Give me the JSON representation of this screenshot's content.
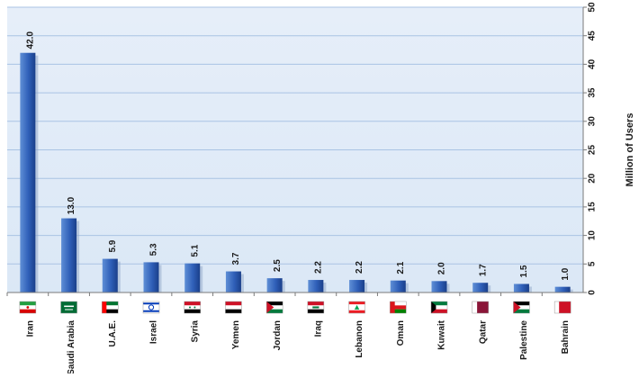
{
  "chart_data": {
    "type": "bar",
    "title": "",
    "xlabel": "",
    "ylabel": "Million of Users",
    "ylim": [
      0,
      50
    ],
    "y_ticks": [
      0,
      5,
      10,
      15,
      20,
      25,
      30,
      35,
      40,
      45,
      50
    ],
    "y_axis_position": "right",
    "grid": true,
    "legend": "none",
    "categories": [
      "Iran",
      "Saudi Arabia",
      "U.A.E.",
      "Israel",
      "Syria",
      "Yemen",
      "Jordan",
      "Iraq",
      "Lebanon",
      "Oman",
      "Kuwait",
      "Qatar",
      "Palestine",
      "Bahrain"
    ],
    "values": [
      42.0,
      13.0,
      5.9,
      5.3,
      5.1,
      3.7,
      2.5,
      2.2,
      2.2,
      2.1,
      2.0,
      1.7,
      1.5,
      1.0
    ],
    "data_labels": [
      "42.0",
      "13.0",
      "5.9",
      "5.3",
      "5.1",
      "3.7",
      "2.5",
      "2.2",
      "2.2",
      "2.1",
      "2.0",
      "1.7",
      "1.5",
      "1.0"
    ],
    "flag_icons": [
      "flag-iran-icon",
      "flag-saudi-arabia-icon",
      "flag-uae-icon",
      "flag-israel-icon",
      "flag-syria-icon",
      "flag-yemen-icon",
      "flag-jordan-icon",
      "flag-iraq-icon",
      "flag-lebanon-icon",
      "flag-oman-icon",
      "flag-kuwait-icon",
      "flag-qatar-icon",
      "flag-palestine-icon",
      "flag-bahrain-icon"
    ],
    "colors": {
      "plot_background": "#dbe8f6",
      "gridline": "#a9c3e4",
      "bar_light": "#5f8fd6",
      "bar_dark": "#1a3f8a",
      "text": "#1a1a1a",
      "axis": "#7a7a7a"
    }
  }
}
